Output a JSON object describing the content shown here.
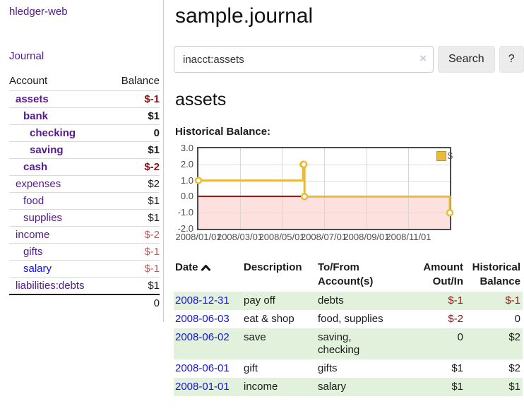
{
  "sidebar": {
    "title": "hledger-web",
    "journal_link": "Journal",
    "accounts": {
      "headers": {
        "account": "Account",
        "balance": "Balance"
      },
      "rows": [
        {
          "name": "assets",
          "depth_cls": "d1",
          "name_cls": "purple b",
          "balance": "$-1",
          "bal_cls": "dred b"
        },
        {
          "name": "bank",
          "depth_cls": "d2",
          "name_cls": "purple b",
          "balance": "$1",
          "bal_cls": "b"
        },
        {
          "name": "checking",
          "depth_cls": "d3",
          "name_cls": "purple b",
          "balance": "0",
          "bal_cls": "b"
        },
        {
          "name": "saving",
          "depth_cls": "d3",
          "name_cls": "purple b",
          "balance": "$1",
          "bal_cls": "b"
        },
        {
          "name": "cash",
          "depth_cls": "d2",
          "name_cls": "purple b",
          "balance": "$-2",
          "bal_cls": "dred b"
        },
        {
          "name": "expenses",
          "depth_cls": "d1",
          "name_cls": "purple",
          "balance": "$2",
          "bal_cls": ""
        },
        {
          "name": "food",
          "depth_cls": "d2",
          "name_cls": "purple",
          "balance": "$1",
          "bal_cls": ""
        },
        {
          "name": "supplies",
          "depth_cls": "d2",
          "name_cls": "purple",
          "balance": "$1",
          "bal_cls": ""
        },
        {
          "name": "income",
          "depth_cls": "d1",
          "name_cls": "purple",
          "balance": "$-2",
          "bal_cls": "lred"
        },
        {
          "name": "gifts",
          "depth_cls": "d2",
          "name_cls": "purple",
          "balance": "$-1",
          "bal_cls": "lred"
        },
        {
          "name": "salary",
          "depth_cls": "d2",
          "name_cls": "blue",
          "balance": "$-1",
          "bal_cls": "lred"
        },
        {
          "name": "liabilities:debts",
          "depth_cls": "d1",
          "name_cls": "purple",
          "balance": "$1",
          "bal_cls": ""
        }
      ],
      "total": "0"
    }
  },
  "main": {
    "title": "sample.journal",
    "search": {
      "value": "inacct:assets",
      "clear_icon": "×",
      "button_label": "Search",
      "help_label": "?"
    },
    "account_heading": "assets",
    "chart_label": "Historical Balance:"
  },
  "chart_data": {
    "type": "line",
    "title": "Historical Balance",
    "legend": {
      "label": "$",
      "position": "top-right"
    },
    "ylim": [
      -2,
      3
    ],
    "yticks": [
      {
        "label": "3.0",
        "v": 3
      },
      {
        "label": "2.0",
        "v": 2
      },
      {
        "label": "1.0",
        "v": 1
      },
      {
        "label": "0.0",
        "v": 0
      },
      {
        "label": "-1.0",
        "v": -1
      },
      {
        "label": "-2.0",
        "v": -2
      }
    ],
    "xticks": [
      {
        "label": "2008/01/01",
        "f": 0
      },
      {
        "label": "2008/03/01",
        "f": 0.1644
      },
      {
        "label": "2008/05/01",
        "f": 0.3315
      },
      {
        "label": "2008/07/01",
        "f": 0.4986
      },
      {
        "label": "2008/09/01",
        "f": 0.6685
      },
      {
        "label": "2008/11/01",
        "f": 0.8356
      }
    ],
    "series": [
      {
        "name": "$",
        "color": "#e8bb3a",
        "step": true,
        "points": [
          {
            "date": "2008-01-01",
            "f": 0,
            "v": 1
          },
          {
            "date": "2008-06-01",
            "f": 0.4164,
            "v": 2
          },
          {
            "date": "2008-06-02",
            "f": 0.4192,
            "v": 2
          },
          {
            "date": "2008-06-03",
            "f": 0.4219,
            "v": 0
          },
          {
            "date": "2008-12-31",
            "f": 1,
            "v": -1
          }
        ]
      }
    ],
    "negative_fill": "#fde1df",
    "zero_line_color": "#a41212",
    "grid": true
  },
  "register": {
    "headers": {
      "date": "Date",
      "description": "Description",
      "accounts": "To/From\nAccount(s)",
      "amount": "Amount\nOut/In",
      "balance": "Historical\nBalance"
    },
    "rows": [
      {
        "date": "2008-12-31",
        "description": "pay off",
        "accounts": "debts",
        "amount": "$-1",
        "amount_cls": "dred",
        "balance": "$-1",
        "balance_cls": "dred"
      },
      {
        "date": "2008-06-03",
        "description": "eat & shop",
        "accounts": "food, supplies",
        "amount": "$-2",
        "amount_cls": "dred",
        "balance": "0",
        "balance_cls": ""
      },
      {
        "date": "2008-06-02",
        "description": "save",
        "accounts": "saving,\nchecking",
        "amount": "0",
        "amount_cls": "",
        "balance": "$2",
        "balance_cls": ""
      },
      {
        "date": "2008-06-01",
        "description": "gift",
        "accounts": "gifts",
        "amount": "$1",
        "amount_cls": "",
        "balance": "$2",
        "balance_cls": ""
      },
      {
        "date": "2008-01-01",
        "description": "income",
        "accounts": "salary",
        "amount": "$1",
        "amount_cls": "",
        "balance": "$1",
        "balance_cls": ""
      }
    ]
  }
}
